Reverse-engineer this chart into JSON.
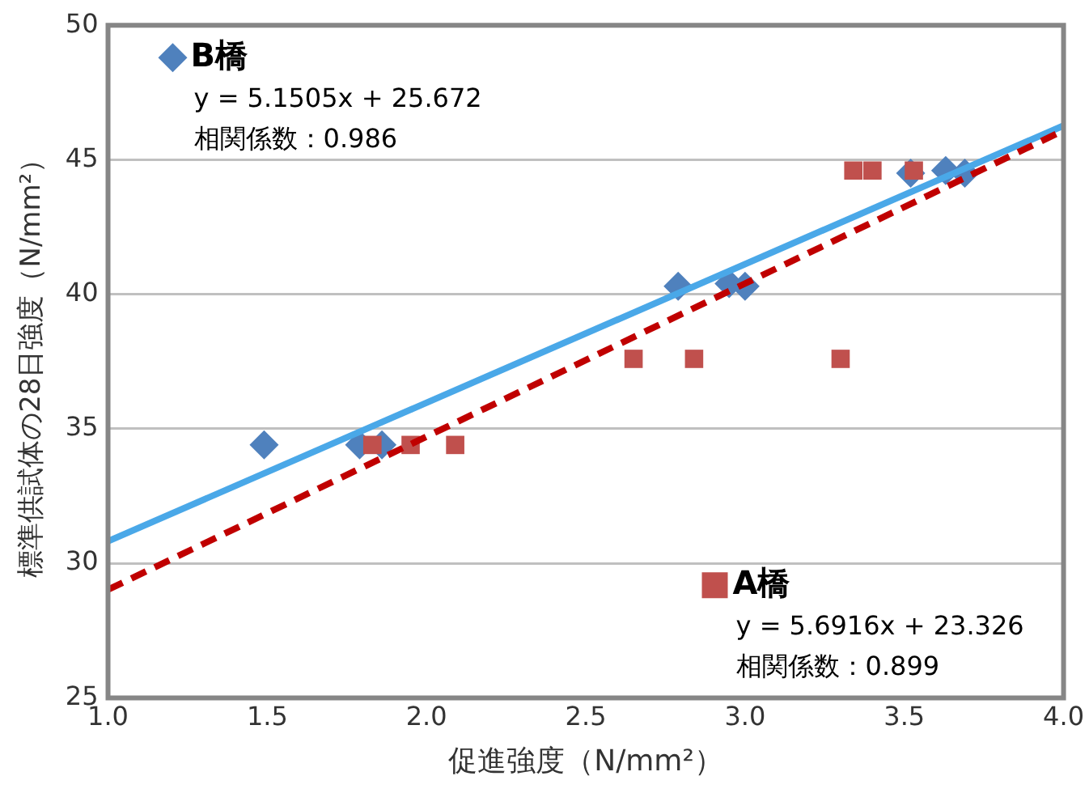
{
  "chart_data": {
    "type": "scatter",
    "xlabel": "促進強度（N/mm²）",
    "ylabel": "標準供試体の28日強度（N/mm²）",
    "series": [
      {
        "name": "B橋",
        "type": "scatter",
        "marker": "diamond",
        "color": "#4f81bd",
        "x": [
          1.49,
          1.79,
          1.86,
          2.79,
          2.95,
          3.0,
          3.52,
          3.63,
          3.69
        ],
        "values": [
          34.4,
          34.4,
          34.4,
          40.3,
          40.4,
          40.3,
          44.5,
          44.6,
          44.5
        ]
      },
      {
        "name": "A橋",
        "type": "scatter",
        "marker": "square",
        "color": "#c0504d",
        "x": [
          1.83,
          1.95,
          2.09,
          2.65,
          2.84,
          3.3,
          3.34,
          3.4,
          3.53
        ],
        "values": [
          34.4,
          34.4,
          34.4,
          37.6,
          37.6,
          37.6,
          44.6,
          44.6,
          44.6
        ]
      },
      {
        "type": "line",
        "color": "#4aa8e8",
        "line_style": "solid",
        "marker": "none",
        "x": [
          1.0,
          4.0
        ],
        "values": [
          30.82,
          46.27
        ]
      },
      {
        "type": "line",
        "color": "#c00000",
        "line_style": "dashed",
        "marker": "none",
        "x": [
          1.0,
          4.0
        ],
        "values": [
          29.02,
          46.09
        ]
      }
    ],
    "annotations": [
      "y = 5.1505x + 25.672",
      "相関係数：0.986",
      "y = 5.6916x + 23.326",
      "相関係数：0.899"
    ],
    "xlim": [
      1.0,
      4.0
    ],
    "xticks": [
      {
        "value": 1.0,
        "label": "1.0"
      },
      {
        "value": 1.5,
        "label": "1.5"
      },
      {
        "value": 2.0,
        "label": "2.0"
      },
      {
        "value": 2.5,
        "label": "2.5"
      },
      {
        "value": 3.0,
        "label": "3.0"
      },
      {
        "value": 3.5,
        "label": "3.5"
      },
      {
        "value": 4.0,
        "label": "4.0"
      }
    ],
    "ylim": [
      25,
      50
    ],
    "yticks": [
      25,
      30,
      35,
      40,
      45,
      50
    ],
    "grid": "y",
    "legend": "top left"
  }
}
